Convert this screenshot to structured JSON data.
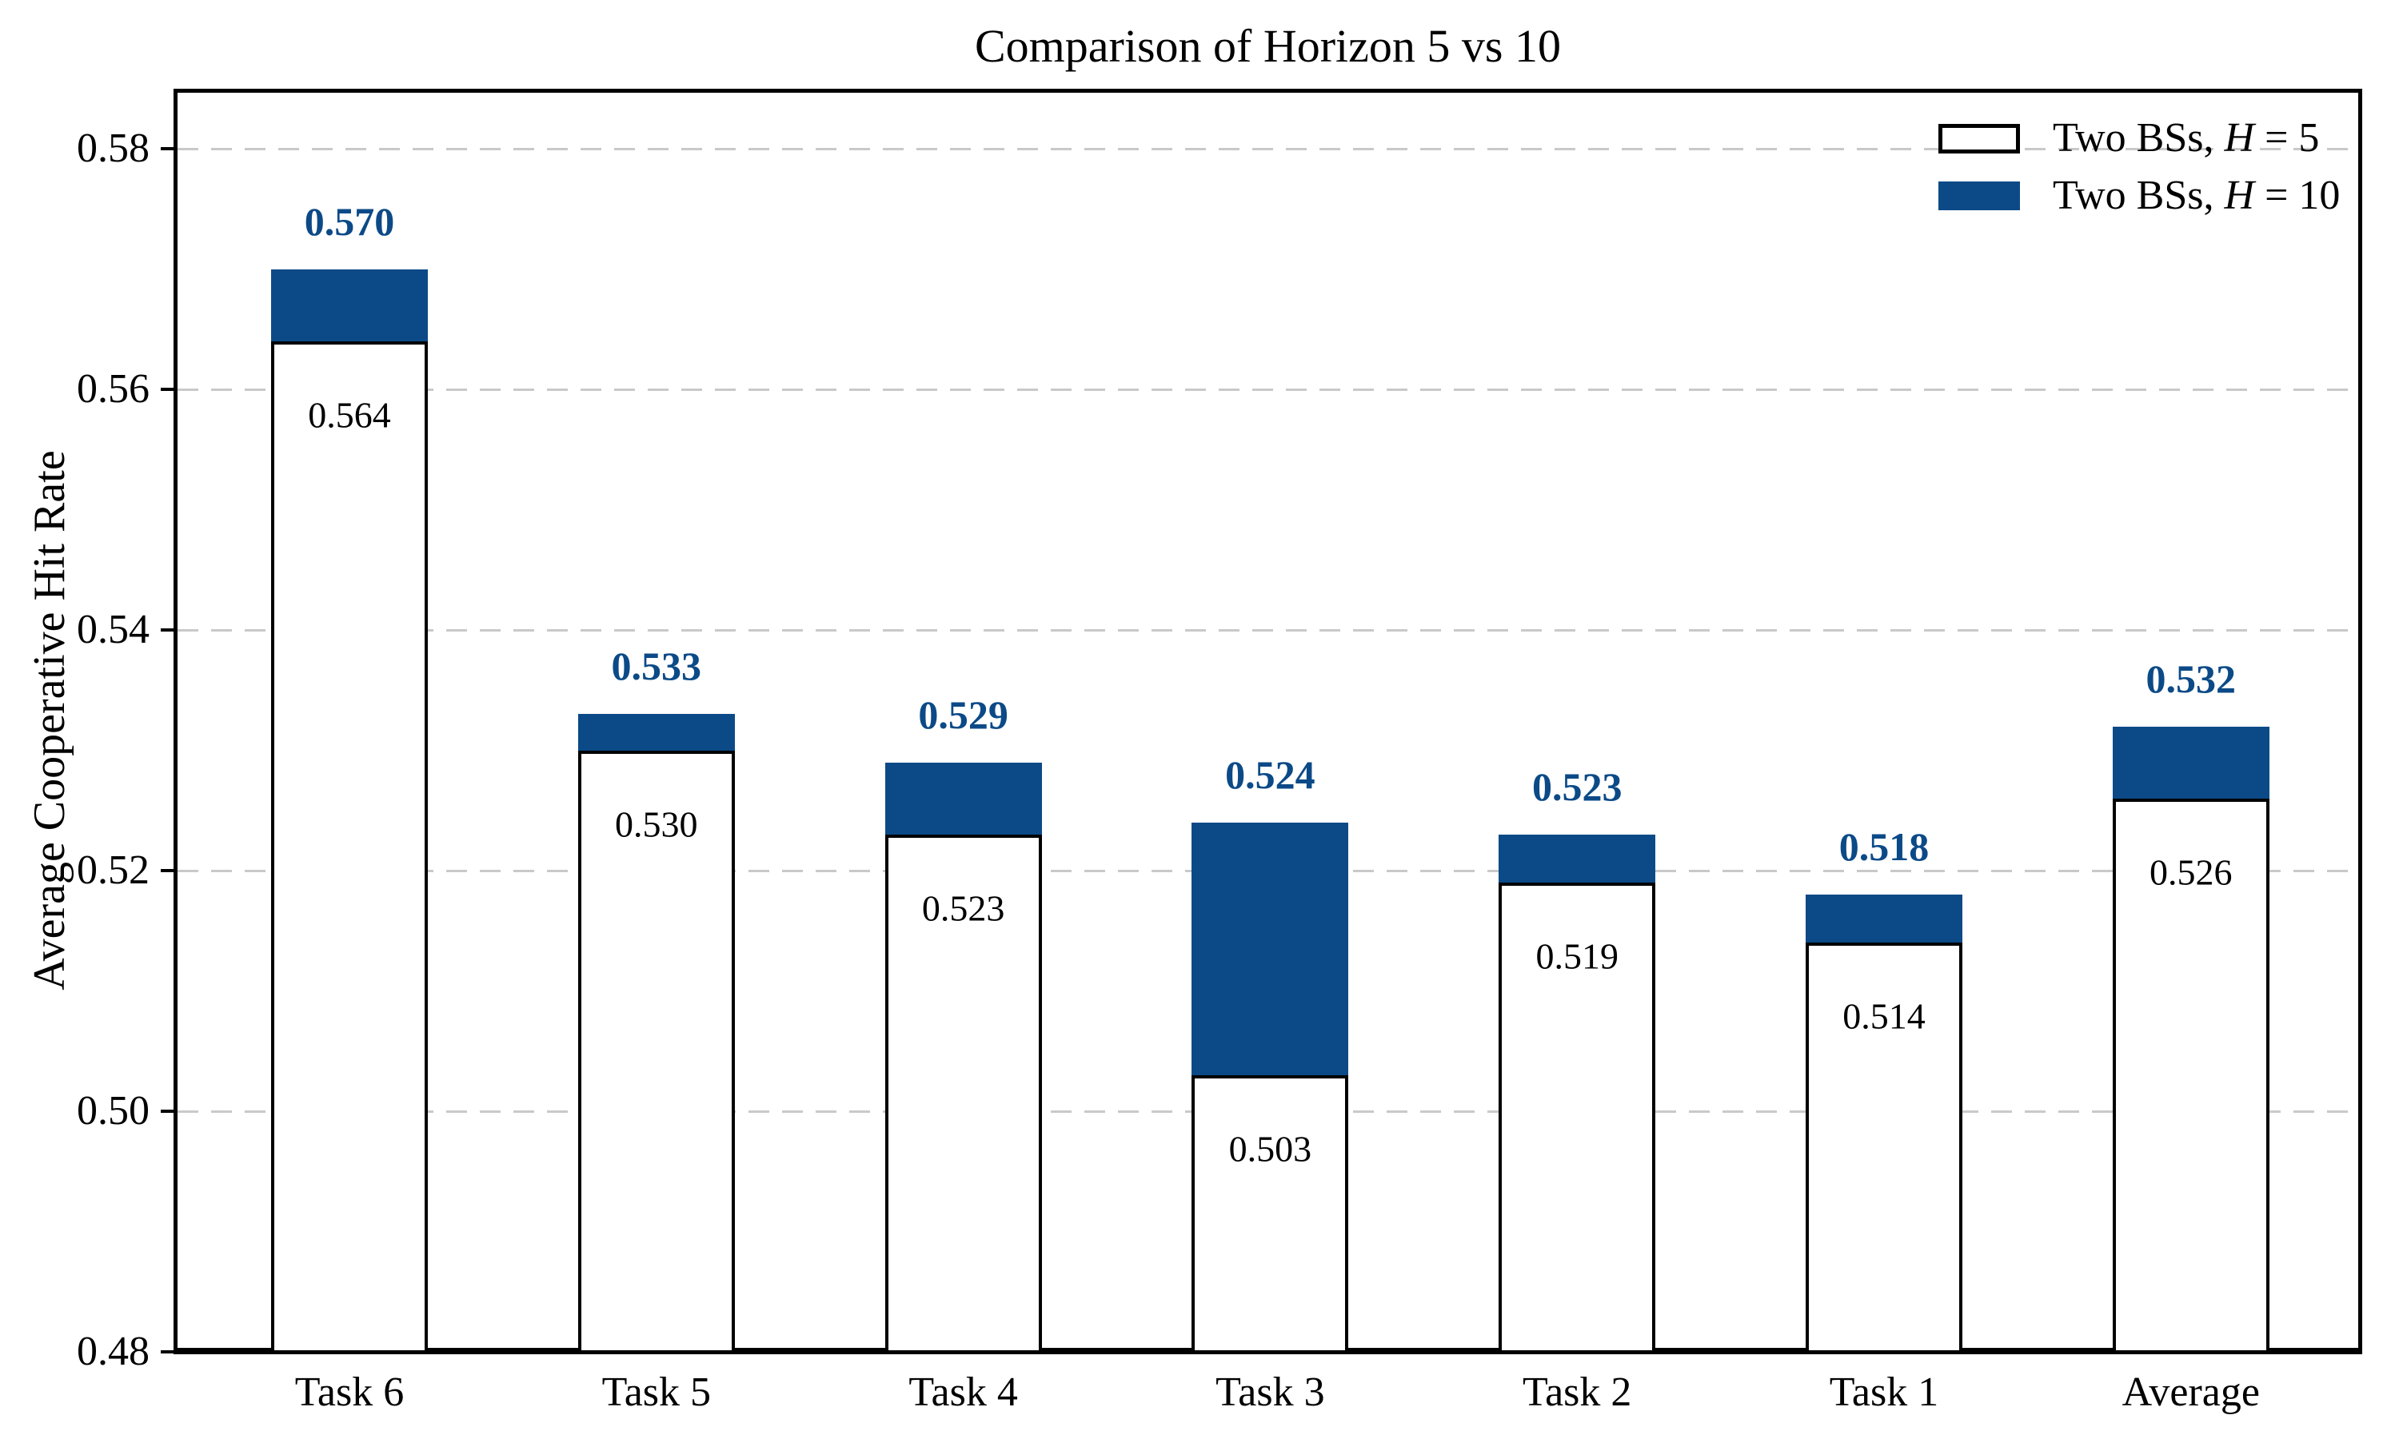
{
  "chart_data": {
    "type": "bar",
    "title": "Comparison of Horizon 5 vs 10",
    "ylabel": "Average Cooperative Hit Rate",
    "xlabel": "",
    "categories": [
      "Task 6",
      "Task 5",
      "Task 4",
      "Task 3",
      "Task 2",
      "Task 1",
      "Average"
    ],
    "series": [
      {
        "name": "Two BSs, H = 5",
        "values": [
          0.564,
          0.53,
          0.523,
          0.503,
          0.519,
          0.514,
          0.526
        ],
        "labels": [
          "0.564",
          "0.530",
          "0.523",
          "0.503",
          "0.519",
          "0.514",
          "0.526"
        ],
        "style": "white bar, black edge, value label inside top of bar"
      },
      {
        "name": "Two BSs, H = 10",
        "values": [
          0.57,
          0.533,
          0.529,
          0.524,
          0.523,
          0.518,
          0.532
        ],
        "labels": [
          "0.570",
          "0.533",
          "0.529",
          "0.524",
          "0.523",
          "0.518",
          "0.532"
        ],
        "style": "navy cap stacked from H5 value to H10 value, bold navy label above"
      }
    ],
    "ylim": [
      0.48,
      0.585
    ],
    "ytick_values": [
      0.48,
      0.5,
      0.52,
      0.54,
      0.56,
      0.58
    ],
    "ytick_labels": [
      "0.48",
      "0.50",
      "0.52",
      "0.54",
      "0.56",
      "0.58"
    ],
    "grid": "horizontal dashed gray lines at y ticks, behind bars",
    "legend_position": "upper right, no frame",
    "legend": [
      {
        "prefix": "Two BSs, ",
        "var": "H",
        "suffix": " = 5",
        "swatch": "white-outline"
      },
      {
        "prefix": "Two BSs, ",
        "var": "H",
        "suffix": " = 10",
        "swatch": "navy-fill"
      }
    ],
    "colors": {
      "h10_fill": "#0c4a87",
      "h10_label": "#0c4a87",
      "bar_edge": "#000000",
      "grid": "#c9c9c9",
      "axis": "#000000",
      "background": "#ffffff"
    }
  }
}
